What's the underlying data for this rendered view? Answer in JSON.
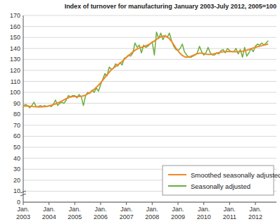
{
  "chart_data": {
    "type": "line",
    "title": "Index of turnover for manufacturing January 2003-July 2012, 2005=100",
    "categories": [
      "Jan. 2003",
      null,
      null,
      null,
      null,
      null,
      null,
      null,
      null,
      null,
      null,
      null,
      "Jan. 2004",
      null,
      null,
      null,
      null,
      null,
      null,
      null,
      null,
      null,
      null,
      null,
      "Jan. 2005",
      null,
      null,
      null,
      null,
      null,
      null,
      null,
      null,
      null,
      null,
      null,
      "Jan. 2006",
      null,
      null,
      null,
      null,
      null,
      null,
      null,
      null,
      null,
      null,
      null,
      "Jan. 2007",
      null,
      null,
      null,
      null,
      null,
      null,
      null,
      null,
      null,
      null,
      null,
      "Jan. 2008",
      null,
      null,
      null,
      null,
      null,
      null,
      null,
      null,
      null,
      null,
      null,
      "Jan. 2009",
      null,
      null,
      null,
      null,
      null,
      null,
      null,
      null,
      null,
      null,
      null,
      "Jan. 2010",
      null,
      null,
      null,
      null,
      null,
      null,
      null,
      null,
      null,
      null,
      null,
      "Jan. 2011",
      null,
      null,
      null,
      null,
      null,
      null,
      null,
      null,
      null,
      null,
      null,
      "Jan. 2012",
      null,
      null,
      null,
      null,
      null,
      null
    ],
    "series": [
      {
        "name": "Smoothed seasonally adjusted",
        "color": "#f0892a",
        "values": [
          87.5,
          87.5,
          87.5,
          87.3,
          87.2,
          87,
          87,
          86.8,
          86.8,
          86.9,
          87,
          87.3,
          87.7,
          88.2,
          88.8,
          89.5,
          90.3,
          91.2,
          92.2,
          93.2,
          94.2,
          95.1,
          95.8,
          96.2,
          96.3,
          96.2,
          96.2,
          96.4,
          96.9,
          97.6,
          98.6,
          99.8,
          101.2,
          102.8,
          104.5,
          106.5,
          108.7,
          111,
          113.5,
          116,
          118.3,
          120.5,
          122.2,
          123.6,
          125,
          126.5,
          128.2,
          130,
          131.8,
          133.5,
          135.2,
          136.8,
          138.3,
          139.5,
          140.4,
          141,
          141.6,
          142.3,
          143.2,
          144.3,
          145.5,
          146.8,
          148.2,
          149.5,
          150.6,
          151.2,
          151.2,
          150.5,
          148.8,
          146.4,
          143.5,
          140.5,
          137.8,
          135.5,
          133.6,
          132.5,
          132,
          132.2,
          132.8,
          133.6,
          134.5,
          135.2,
          135.6,
          135.6,
          135.3,
          134.8,
          134.5,
          134.5,
          134.8,
          135.2,
          135.7,
          136.2,
          136.6,
          136.9,
          137.1,
          137.2,
          137.2,
          137.2,
          137.1,
          137,
          137,
          137.2,
          137.5,
          137.9,
          138.4,
          139,
          139.7,
          140.4,
          141,
          141.6,
          142.1,
          142.5,
          143,
          143.5,
          144
        ]
      },
      {
        "name": "Seasonally adjusted",
        "color": "#6aae3c",
        "values": [
          87,
          89,
          88,
          86,
          88,
          91,
          87,
          87,
          88,
          87,
          88,
          87,
          88,
          87,
          89,
          93,
          88,
          90,
          91,
          90,
          93,
          97,
          96,
          97,
          97,
          95,
          98,
          96,
          88,
          97,
          100,
          99,
          102,
          100,
          104,
          101,
          107,
          112,
          117,
          115,
          123,
          121,
          122,
          126,
          124,
          127,
          125,
          131,
          132,
          134,
          133,
          136,
          145,
          141,
          143,
          136,
          143,
          141,
          142,
          144,
          146,
          134,
          155,
          149,
          154,
          148,
          152,
          150,
          154,
          147,
          142,
          139,
          138,
          140,
          144,
          137,
          134,
          132,
          132,
          133,
          134,
          136,
          142,
          137,
          134,
          136,
          141,
          136,
          134,
          134,
          136,
          135,
          138,
          139,
          136,
          140,
          138,
          137,
          137,
          140,
          135,
          139,
          132,
          141,
          133,
          136,
          140,
          137,
          142,
          144,
          143,
          145,
          143,
          145,
          147
        ]
      }
    ],
    "ylim": [
      0,
      170
    ],
    "yticks": [
      0,
      10,
      20,
      30,
      40,
      50,
      60,
      70,
      80,
      90,
      100,
      110,
      120,
      130,
      140,
      150,
      160,
      170
    ],
    "grid": true,
    "legend": "bottom-right"
  }
}
